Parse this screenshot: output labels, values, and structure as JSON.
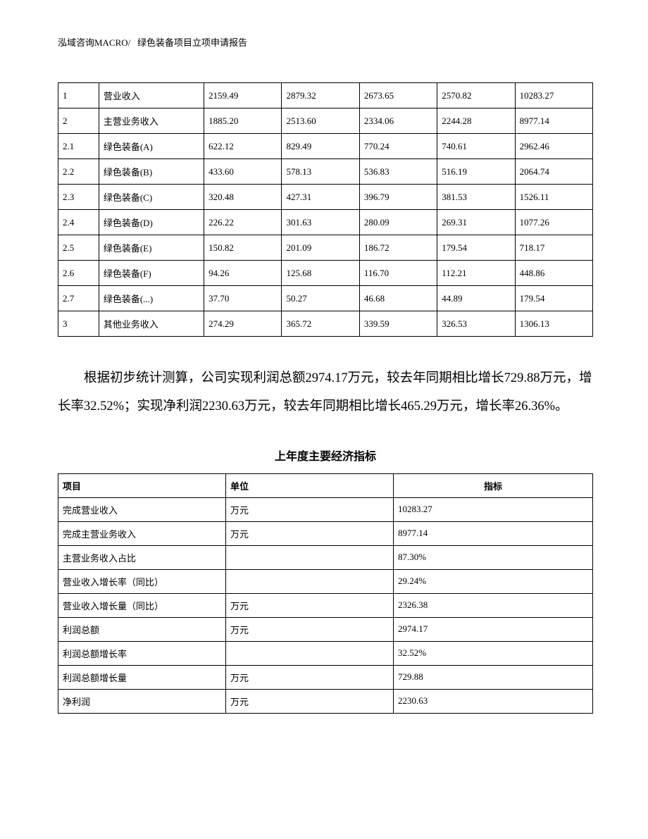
{
  "header": {
    "company": "泓域咨询MACRO/",
    "title": "绿色装备项目立项申请报告"
  },
  "table1": {
    "rows": [
      {
        "idx": "1",
        "name": "营业收入",
        "v1": "2159.49",
        "v2": "2879.32",
        "v3": "2673.65",
        "v4": "2570.82",
        "total": "10283.27"
      },
      {
        "idx": "2",
        "name": "主营业务收入",
        "v1": "1885.20",
        "v2": "2513.60",
        "v3": "2334.06",
        "v4": "2244.28",
        "total": "8977.14"
      },
      {
        "idx": "2.1",
        "name": "绿色装备(A)",
        "v1": "622.12",
        "v2": "829.49",
        "v3": "770.24",
        "v4": "740.61",
        "total": "2962.46"
      },
      {
        "idx": "2.2",
        "name": "绿色装备(B)",
        "v1": "433.60",
        "v2": "578.13",
        "v3": "536.83",
        "v4": "516.19",
        "total": "2064.74"
      },
      {
        "idx": "2.3",
        "name": "绿色装备(C)",
        "v1": "320.48",
        "v2": "427.31",
        "v3": "396.79",
        "v4": "381.53",
        "total": "1526.11"
      },
      {
        "idx": "2.4",
        "name": "绿色装备(D)",
        "v1": "226.22",
        "v2": "301.63",
        "v3": "280.09",
        "v4": "269.31",
        "total": "1077.26"
      },
      {
        "idx": "2.5",
        "name": "绿色装备(E)",
        "v1": "150.82",
        "v2": "201.09",
        "v3": "186.72",
        "v4": "179.54",
        "total": "718.17"
      },
      {
        "idx": "2.6",
        "name": "绿色装备(F)",
        "v1": "94.26",
        "v2": "125.68",
        "v3": "116.70",
        "v4": "112.21",
        "total": "448.86"
      },
      {
        "idx": "2.7",
        "name": "绿色装备(...)",
        "v1": "37.70",
        "v2": "50.27",
        "v3": "46.68",
        "v4": "44.89",
        "total": "179.54"
      },
      {
        "idx": "3",
        "name": "其他业务收入",
        "v1": "274.29",
        "v2": "365.72",
        "v3": "339.59",
        "v4": "326.53",
        "total": "1306.13"
      }
    ]
  },
  "paragraph": "根据初步统计测算，公司实现利润总额2974.17万元，较去年同期相比增长729.88万元，增长率32.52%；实现净利润2230.63万元，较去年同期相比增长465.29万元，增长率26.36%。",
  "table2": {
    "title": "上年度主要经济指标",
    "headers": {
      "c1": "项目",
      "c2": "单位",
      "c3": "指标"
    },
    "rows": [
      {
        "item": "完成营业收入",
        "unit": "万元",
        "value": "10283.27"
      },
      {
        "item": "完成主营业务收入",
        "unit": "万元",
        "value": "8977.14"
      },
      {
        "item": "主营业务收入占比",
        "unit": "",
        "value": "87.30%"
      },
      {
        "item": "营业收入增长率（同比）",
        "unit": "",
        "value": "29.24%"
      },
      {
        "item": "营业收入增长量（同比）",
        "unit": "万元",
        "value": "2326.38"
      },
      {
        "item": "利润总额",
        "unit": "万元",
        "value": "2974.17"
      },
      {
        "item": "利润总额增长率",
        "unit": "",
        "value": "32.52%"
      },
      {
        "item": "利润总额增长量",
        "unit": "万元",
        "value": "729.88"
      },
      {
        "item": "净利润",
        "unit": "万元",
        "value": "2230.63"
      }
    ]
  }
}
